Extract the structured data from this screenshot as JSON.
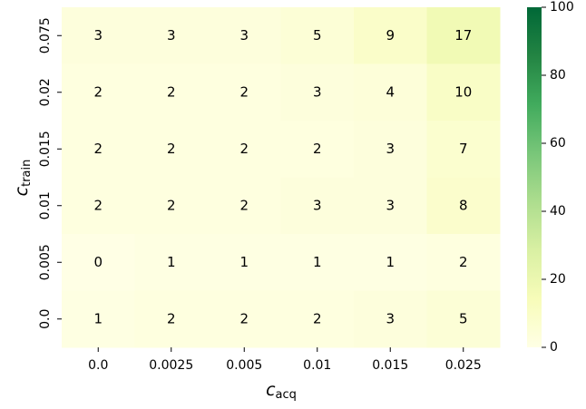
{
  "chart_data": {
    "type": "heatmap",
    "xlabel": "c",
    "xlabel_sub": "acq",
    "ylabel": "c",
    "ylabel_sub": "train",
    "x_categories": [
      "0.0",
      "0.0025",
      "0.005",
      "0.01",
      "0.015",
      "0.025"
    ],
    "y_categories": [
      "0.075",
      "0.02",
      "0.015",
      "0.01",
      "0.005",
      "0.0"
    ],
    "values": [
      [
        3,
        3,
        3,
        5,
        9,
        17
      ],
      [
        2,
        2,
        2,
        3,
        4,
        10
      ],
      [
        2,
        2,
        2,
        2,
        3,
        7
      ],
      [
        2,
        2,
        2,
        3,
        3,
        8
      ],
      [
        0,
        1,
        1,
        1,
        1,
        2
      ],
      [
        1,
        2,
        2,
        2,
        3,
        5
      ]
    ],
    "clim": [
      0,
      100
    ],
    "cticks": [
      0,
      20,
      40,
      60,
      80,
      100
    ],
    "colormap": [
      "#ffffe5",
      "#f7fcb9",
      "#d9f0a3",
      "#addd8e",
      "#78c679",
      "#41ab5d",
      "#238443",
      "#006837"
    ]
  }
}
